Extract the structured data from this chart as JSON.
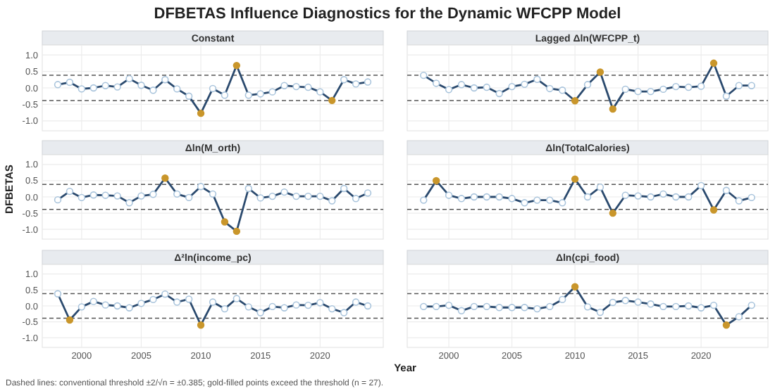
{
  "chart_data": [
    {
      "type": "other",
      "title": "DFBETAS Influence Diagnostics for the Dynamic WFCPP Model",
      "annotations": [
        "Dashed lines: conventional threshold ±2/√n = ±0.385; gold-filled points exceed the threshold (n = 27)."
      ]
    },
    {
      "type": "line",
      "title": "Constant",
      "x": [
        1998,
        1999,
        2000,
        2001,
        2002,
        2003,
        2004,
        2005,
        2006,
        2007,
        2008,
        2009,
        2010,
        2011,
        2012,
        2013,
        2014,
        2015,
        2016,
        2017,
        2018,
        2019,
        2020,
        2021,
        2022,
        2023,
        2024
      ],
      "xlim": [
        1996.7,
        2025.3
      ],
      "xticks": [
        2000,
        2005,
        2010,
        2015,
        2020
      ],
      "ylim": [
        -1.3,
        1.3
      ],
      "yticks": [
        {
          "value": -1,
          "label": "-1.0"
        },
        {
          "value": -0.5,
          "label": "-0.5"
        },
        {
          "value": 0,
          "label": "0.0"
        },
        {
          "value": 0.5,
          "label": "0.5"
        },
        {
          "value": 1,
          "label": "1.0"
        }
      ],
      "grid": true,
      "marker": "circle",
      "tick_labels": "y",
      "ref_lines": [
        {
          "axis": "y",
          "value": 0.385,
          "line_style": "dashed",
          "color": "#555555"
        },
        {
          "axis": "y",
          "value": -0.385,
          "line_style": "dashed",
          "color": "#555555"
        }
      ],
      "series": [
        {
          "color": "#2b4a6e",
          "values": [
            0.1,
            0.17,
            -0.03,
            0.0,
            0.07,
            0.03,
            0.28,
            0.08,
            -0.07,
            0.25,
            -0.03,
            -0.25,
            -0.77,
            -0.02,
            -0.22,
            0.68,
            -0.22,
            -0.18,
            -0.12,
            0.07,
            0.04,
            0.02,
            -0.12,
            -0.38,
            0.25,
            0.12,
            0.18
          ],
          "colors": [
            "#ffffff",
            "#ffffff",
            "#ffffff",
            "#ffffff",
            "#ffffff",
            "#ffffff",
            "#ffffff",
            "#ffffff",
            "#ffffff",
            "#ffffff",
            "#ffffff",
            "#ffffff",
            "#c9962b",
            "#ffffff",
            "#ffffff",
            "#c9962b",
            "#ffffff",
            "#ffffff",
            "#ffffff",
            "#ffffff",
            "#ffffff",
            "#ffffff",
            "#ffffff",
            "#c9962b",
            "#ffffff",
            "#ffffff",
            "#ffffff"
          ]
        }
      ]
    },
    {
      "type": "line",
      "title": "Lagged Δln(WFCPP_t)",
      "x": [
        1998,
        1999,
        2000,
        2001,
        2002,
        2003,
        2004,
        2005,
        2006,
        2007,
        2008,
        2009,
        2010,
        2011,
        2012,
        2013,
        2014,
        2015,
        2016,
        2017,
        2018,
        2019,
        2020,
        2021,
        2022,
        2023,
        2024
      ],
      "xlim": [
        1996.7,
        2025.3
      ],
      "xticks": [
        2000,
        2005,
        2010,
        2015,
        2020
      ],
      "ylim": [
        -1.3,
        1.3
      ],
      "yticks": [
        -1,
        -0.5,
        0,
        0.5,
        1
      ],
      "grid": true,
      "marker": "circle",
      "tick_labels": false,
      "ref_lines": [
        {
          "axis": "y",
          "value": 0.385,
          "line_style": "dashed",
          "color": "#555555"
        },
        {
          "axis": "y",
          "value": -0.385,
          "line_style": "dashed",
          "color": "#555555"
        }
      ],
      "series": [
        {
          "color": "#2b4a6e",
          "values": [
            0.38,
            0.14,
            -0.05,
            0.1,
            0.0,
            0.02,
            -0.17,
            0.04,
            0.11,
            0.26,
            -0.02,
            -0.07,
            -0.39,
            0.1,
            0.48,
            -0.64,
            -0.04,
            -0.11,
            -0.11,
            -0.04,
            0.04,
            0.02,
            0.05,
            0.75,
            -0.25,
            0.07,
            0.07
          ],
          "colors": [
            "#ffffff",
            "#ffffff",
            "#ffffff",
            "#ffffff",
            "#ffffff",
            "#ffffff",
            "#ffffff",
            "#ffffff",
            "#ffffff",
            "#ffffff",
            "#ffffff",
            "#ffffff",
            "#c9962b",
            "#ffffff",
            "#c9962b",
            "#c9962b",
            "#ffffff",
            "#ffffff",
            "#ffffff",
            "#ffffff",
            "#ffffff",
            "#ffffff",
            "#ffffff",
            "#c9962b",
            "#ffffff",
            "#ffffff",
            "#ffffff"
          ]
        }
      ]
    },
    {
      "type": "line",
      "title": "Δln(M_orth)",
      "ylabel": "DFBETAS",
      "x": [
        1998,
        1999,
        2000,
        2001,
        2002,
        2003,
        2004,
        2005,
        2006,
        2007,
        2008,
        2009,
        2010,
        2011,
        2012,
        2013,
        2014,
        2015,
        2016,
        2017,
        2018,
        2019,
        2020,
        2021,
        2022,
        2023,
        2024
      ],
      "xlim": [
        1996.7,
        2025.3
      ],
      "xticks": [
        2000,
        2005,
        2010,
        2015,
        2020
      ],
      "ylim": [
        -1.3,
        1.3
      ],
      "yticks": [
        {
          "value": -1,
          "label": "-1.0"
        },
        {
          "value": -0.5,
          "label": "-0.5"
        },
        {
          "value": 0,
          "label": "0.0"
        },
        {
          "value": 0.5,
          "label": "0.5"
        },
        {
          "value": 1,
          "label": "1.0"
        }
      ],
      "grid": true,
      "marker": "circle",
      "tick_labels": "y",
      "ref_lines": [
        {
          "axis": "y",
          "value": 0.385,
          "line_style": "dashed",
          "color": "#555555"
        },
        {
          "axis": "y",
          "value": -0.385,
          "line_style": "dashed",
          "color": "#555555"
        }
      ],
      "series": [
        {
          "color": "#2b4a6e",
          "values": [
            -0.09,
            0.17,
            -0.02,
            0.06,
            0.05,
            0.03,
            -0.18,
            0.03,
            0.08,
            0.58,
            0.09,
            -0.02,
            0.32,
            0.09,
            -0.77,
            -1.06,
            0.26,
            -0.03,
            0.02,
            0.15,
            0.02,
            0.02,
            0.02,
            -0.12,
            0.26,
            -0.05,
            0.12
          ],
          "colors": [
            "#ffffff",
            "#ffffff",
            "#ffffff",
            "#ffffff",
            "#ffffff",
            "#ffffff",
            "#ffffff",
            "#ffffff",
            "#ffffff",
            "#c9962b",
            "#ffffff",
            "#ffffff",
            "#ffffff",
            "#ffffff",
            "#c9962b",
            "#c9962b",
            "#ffffff",
            "#ffffff",
            "#ffffff",
            "#ffffff",
            "#ffffff",
            "#ffffff",
            "#ffffff",
            "#ffffff",
            "#ffffff",
            "#ffffff",
            "#ffffff"
          ]
        }
      ]
    },
    {
      "type": "line",
      "title": "Δln(TotalCalories)",
      "x": [
        1998,
        1999,
        2000,
        2001,
        2002,
        2003,
        2004,
        2005,
        2006,
        2007,
        2008,
        2009,
        2010,
        2011,
        2012,
        2013,
        2014,
        2015,
        2016,
        2017,
        2018,
        2019,
        2020,
        2021,
        2022,
        2023,
        2024
      ],
      "xlim": [
        1996.7,
        2025.3
      ],
      "xticks": [
        2000,
        2005,
        2010,
        2015,
        2020
      ],
      "ylim": [
        -1.3,
        1.3
      ],
      "yticks": [
        -1,
        -0.5,
        0,
        0.5,
        1
      ],
      "grid": true,
      "marker": "circle",
      "tick_labels": false,
      "ref_lines": [
        {
          "axis": "y",
          "value": 0.385,
          "line_style": "dashed",
          "color": "#555555"
        },
        {
          "axis": "y",
          "value": -0.385,
          "line_style": "dashed",
          "color": "#555555"
        }
      ],
      "series": [
        {
          "color": "#2b4a6e",
          "values": [
            -0.1,
            0.5,
            0.05,
            -0.05,
            0.0,
            0.0,
            0.0,
            -0.05,
            -0.18,
            -0.1,
            -0.1,
            -0.18,
            0.55,
            0.0,
            0.3,
            -0.5,
            0.05,
            0.03,
            0.0,
            0.09,
            0.0,
            0.0,
            0.35,
            -0.4,
            0.2,
            -0.12,
            -0.02
          ],
          "colors": [
            "#ffffff",
            "#c9962b",
            "#ffffff",
            "#ffffff",
            "#ffffff",
            "#ffffff",
            "#ffffff",
            "#ffffff",
            "#ffffff",
            "#ffffff",
            "#ffffff",
            "#ffffff",
            "#c9962b",
            "#ffffff",
            "#ffffff",
            "#c9962b",
            "#ffffff",
            "#ffffff",
            "#ffffff",
            "#ffffff",
            "#ffffff",
            "#ffffff",
            "#ffffff",
            "#c9962b",
            "#ffffff",
            "#ffffff",
            "#ffffff"
          ]
        }
      ]
    },
    {
      "type": "line",
      "title": "Δ²ln(income_pc)",
      "xlabel": "Year",
      "x": [
        1998,
        1999,
        2000,
        2001,
        2002,
        2003,
        2004,
        2005,
        2006,
        2007,
        2008,
        2009,
        2010,
        2011,
        2012,
        2013,
        2014,
        2015,
        2016,
        2017,
        2018,
        2019,
        2020,
        2021,
        2022,
        2023,
        2024
      ],
      "xlim": [
        1996.7,
        2025.3
      ],
      "xticks": [
        2000,
        2005,
        2010,
        2015,
        2020
      ],
      "ylim": [
        -1.3,
        1.3
      ],
      "yticks": [
        {
          "value": -1,
          "label": "-1.0"
        },
        {
          "value": -0.5,
          "label": "-0.5"
        },
        {
          "value": 0,
          "label": "0.0"
        },
        {
          "value": 0.5,
          "label": "0.5"
        },
        {
          "value": 1,
          "label": "1.0"
        }
      ],
      "grid": true,
      "marker": "circle",
      "ref_lines": [
        {
          "axis": "y",
          "value": 0.385,
          "line_style": "dashed",
          "color": "#555555"
        },
        {
          "axis": "y",
          "value": -0.385,
          "line_style": "dashed",
          "color": "#555555"
        }
      ],
      "series": [
        {
          "color": "#2b4a6e",
          "values": [
            0.38,
            -0.44,
            -0.03,
            0.14,
            0.03,
            0.0,
            -0.06,
            0.08,
            0.2,
            0.37,
            0.12,
            0.21,
            -0.6,
            0.12,
            -0.09,
            0.23,
            -0.03,
            -0.21,
            -0.02,
            -0.06,
            0.03,
            0.02,
            0.1,
            -0.09,
            -0.21,
            0.12,
            0.0
          ],
          "colors": [
            "#ffffff",
            "#c9962b",
            "#ffffff",
            "#ffffff",
            "#ffffff",
            "#ffffff",
            "#ffffff",
            "#ffffff",
            "#ffffff",
            "#ffffff",
            "#ffffff",
            "#ffffff",
            "#c9962b",
            "#ffffff",
            "#ffffff",
            "#ffffff",
            "#ffffff",
            "#ffffff",
            "#ffffff",
            "#ffffff",
            "#ffffff",
            "#ffffff",
            "#ffffff",
            "#ffffff",
            "#ffffff",
            "#ffffff",
            "#ffffff"
          ]
        }
      ]
    },
    {
      "type": "line",
      "title": "Δln(cpi_food)",
      "x": [
        1998,
        1999,
        2000,
        2001,
        2002,
        2003,
        2004,
        2005,
        2006,
        2007,
        2008,
        2009,
        2010,
        2011,
        2012,
        2013,
        2014,
        2015,
        2016,
        2017,
        2018,
        2019,
        2020,
        2021,
        2022,
        2023,
        2024
      ],
      "xlim": [
        1996.7,
        2025.3
      ],
      "xticks": [
        2000,
        2005,
        2010,
        2015,
        2020
      ],
      "ylim": [
        -1.3,
        1.3
      ],
      "yticks": [
        -1,
        -0.5,
        0,
        0.5,
        1
      ],
      "grid": true,
      "marker": "circle",
      "tick_labels": "x",
      "ref_lines": [
        {
          "axis": "y",
          "value": 0.385,
          "line_style": "dashed",
          "color": "#555555"
        },
        {
          "axis": "y",
          "value": -0.385,
          "line_style": "dashed",
          "color": "#555555"
        }
      ],
      "series": [
        {
          "color": "#2b4a6e",
          "values": [
            -0.02,
            -0.02,
            0.02,
            -0.15,
            -0.02,
            -0.02,
            -0.05,
            -0.05,
            -0.05,
            -0.09,
            -0.02,
            0.2,
            0.6,
            -0.03,
            -0.2,
            0.11,
            0.17,
            0.12,
            0.06,
            -0.02,
            -0.02,
            0.0,
            -0.06,
            0.02,
            -0.6,
            -0.34,
            0.02
          ],
          "colors": [
            "#ffffff",
            "#ffffff",
            "#ffffff",
            "#ffffff",
            "#ffffff",
            "#ffffff",
            "#ffffff",
            "#ffffff",
            "#ffffff",
            "#ffffff",
            "#ffffff",
            "#ffffff",
            "#c9962b",
            "#ffffff",
            "#ffffff",
            "#ffffff",
            "#ffffff",
            "#ffffff",
            "#ffffff",
            "#ffffff",
            "#ffffff",
            "#ffffff",
            "#ffffff",
            "#ffffff",
            "#c9962b",
            "#ffffff",
            "#ffffff"
          ]
        }
      ]
    }
  ]
}
